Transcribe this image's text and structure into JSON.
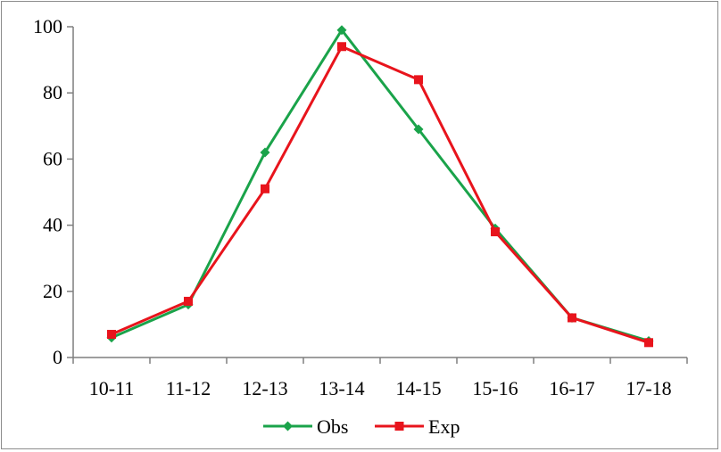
{
  "chart_data": {
    "type": "line",
    "categories": [
      "10-11",
      "11-12",
      "12-13",
      "13-14",
      "14-15",
      "15-16",
      "16-17",
      "17-18"
    ],
    "series": [
      {
        "name": "Obs",
        "color": "#1aa34a",
        "marker": "diamond",
        "values": [
          6,
          16,
          62,
          99,
          69,
          39,
          12,
          5
        ]
      },
      {
        "name": "Exp",
        "color": "#e8141c",
        "marker": "square",
        "values": [
          7,
          17,
          51,
          94,
          84,
          38,
          12,
          4.5
        ]
      }
    ],
    "y_ticks": [
      "0",
      "20",
      "40",
      "60",
      "80",
      "100"
    ],
    "ylim": [
      0,
      100
    ],
    "title": "",
    "xlabel": "",
    "ylabel": "",
    "grid": false,
    "legend_position": "bottom"
  }
}
